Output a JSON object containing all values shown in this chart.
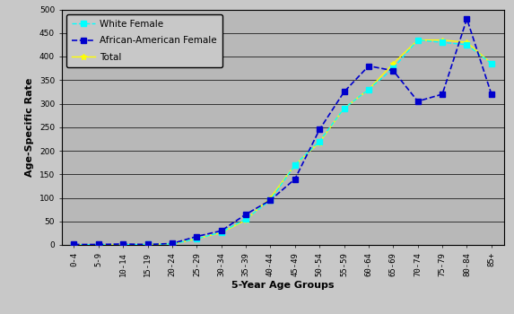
{
  "age_groups": [
    "0-4",
    "5-9",
    "10-14",
    "15-19",
    "20-24",
    "25-29",
    "30-34",
    "35-39",
    "40-44",
    "45-49",
    "50-54",
    "55-59",
    "60-64",
    "65-69",
    "70-74",
    "75-79",
    "80-84",
    "85+"
  ],
  "white_female": [
    0.5,
    0.5,
    0.5,
    1,
    2,
    13,
    27,
    55,
    95,
    170,
    220,
    290,
    330,
    375,
    435,
    430,
    425,
    385
  ],
  "aa_female": [
    1,
    1,
    2,
    1,
    3,
    18,
    30,
    65,
    95,
    140,
    245,
    325,
    380,
    370,
    305,
    320,
    480,
    320
  ],
  "total": [
    0.5,
    0.5,
    0.5,
    1,
    2,
    13,
    26,
    53,
    100,
    170,
    218,
    290,
    330,
    385,
    435,
    435,
    430,
    385
  ],
  "xlabel": "5-Year Age Groups",
  "ylabel": "Age-Specific Rate",
  "ylim": [
    0,
    500
  ],
  "yticks": [
    0,
    50,
    100,
    150,
    200,
    250,
    300,
    350,
    400,
    450,
    500
  ],
  "bg_color": "#b8b8b8",
  "fig_color": "#c8c8c8",
  "white_female_color": "#00ffff",
  "aa_female_color": "#0000cc",
  "total_color": "#ffff00",
  "legend_labels": [
    "White Female",
    "African-American Female",
    "Total"
  ],
  "axis_fontsize": 8,
  "tick_fontsize": 6.5,
  "legend_fontsize": 7.5
}
